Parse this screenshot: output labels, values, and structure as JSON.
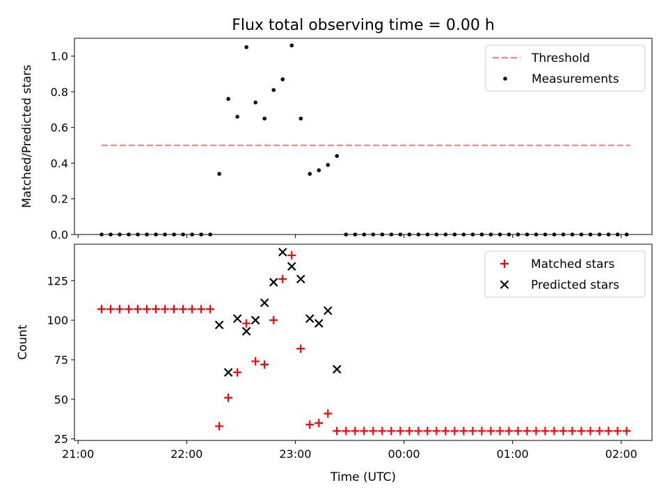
{
  "chart_data": [
    {
      "type": "scatter",
      "title": "Flux total observing time = 0.00 h",
      "xlabel": "",
      "ylabel": "Matched/Predicted stars",
      "xlim": [
        "20:58",
        "02:17"
      ],
      "ylim": [
        0,
        1.1
      ],
      "yticks": [
        0.0,
        0.2,
        0.4,
        0.6,
        0.8,
        1.0
      ],
      "ytick_labels": [
        "0.0",
        "0.2",
        "0.4",
        "0.6",
        "0.8",
        "1.0"
      ],
      "legend_position": "top-right",
      "series": [
        {
          "name": "Threshold",
          "kind": "dashed-line",
          "color": "#ff7f7f",
          "x": [
            "21:13",
            "02:05"
          ],
          "y": [
            0.5,
            0.5
          ]
        },
        {
          "name": "Measurements",
          "kind": "dot",
          "color": "#000000",
          "x": [
            "21:13",
            "21:18",
            "21:23",
            "21:28",
            "21:33",
            "21:38",
            "21:43",
            "21:48",
            "21:53",
            "21:58",
            "22:03",
            "22:08",
            "22:13",
            "22:18",
            "22:23",
            "22:28",
            "22:33",
            "22:38",
            "22:43",
            "22:48",
            "22:53",
            "22:58",
            "23:03",
            "23:08",
            "23:13",
            "23:18",
            "23:23",
            "23:28",
            "23:33",
            "23:38",
            "23:43",
            "23:48",
            "23:53",
            "23:58",
            "00:03",
            "00:08",
            "00:13",
            "00:18",
            "00:23",
            "00:28",
            "00:33",
            "00:38",
            "00:43",
            "00:48",
            "00:53",
            "00:58",
            "01:03",
            "01:08",
            "01:13",
            "01:18",
            "01:23",
            "01:28",
            "01:33",
            "01:38",
            "01:43",
            "01:48",
            "01:53",
            "01:58",
            "02:03"
          ],
          "y": [
            0,
            0,
            0,
            0,
            0,
            0,
            0,
            0,
            0,
            0,
            0,
            0,
            0,
            0.34,
            0.76,
            0.66,
            1.05,
            0.74,
            0.65,
            0.81,
            0.87,
            1.06,
            0.65,
            0.34,
            0.36,
            0.39,
            0.44,
            0,
            0,
            0,
            0,
            0,
            0,
            0,
            0,
            0,
            0,
            0,
            0,
            0,
            0,
            0,
            0,
            0,
            0,
            0,
            0,
            0,
            0,
            0,
            0,
            0,
            0,
            0,
            0,
            0,
            0,
            0,
            0
          ]
        }
      ]
    },
    {
      "type": "scatter",
      "title": "",
      "xlabel": "Time (UTC)",
      "ylabel": "Count",
      "xlim": [
        "20:58",
        "02:17"
      ],
      "ylim": [
        24,
        148
      ],
      "yticks": [
        25,
        50,
        75,
        100,
        125
      ],
      "ytick_labels": [
        "25",
        "50",
        "75",
        "100",
        "125"
      ],
      "xticks": [
        "21:00",
        "22:00",
        "23:00",
        "00:00",
        "01:00",
        "02:00"
      ],
      "xtick_labels": [
        "21:00",
        "22:00",
        "23:00",
        "00:00",
        "01:00",
        "02:00"
      ],
      "legend_position": "top-right",
      "series": [
        {
          "name": "Matched stars",
          "kind": "plus",
          "color": "#ff0000",
          "x": [
            "21:13",
            "21:18",
            "21:23",
            "21:28",
            "21:33",
            "21:38",
            "21:43",
            "21:48",
            "21:53",
            "21:58",
            "22:03",
            "22:08",
            "22:13",
            "22:18",
            "22:23",
            "22:28",
            "22:33",
            "22:38",
            "22:43",
            "22:48",
            "22:53",
            "22:58",
            "23:03",
            "23:08",
            "23:13",
            "23:18",
            "23:23",
            "23:28",
            "23:33",
            "23:38",
            "23:43",
            "23:48",
            "23:53",
            "23:58",
            "00:03",
            "00:08",
            "00:13",
            "00:18",
            "00:23",
            "00:28",
            "00:33",
            "00:38",
            "00:43",
            "00:48",
            "00:53",
            "00:58",
            "01:03",
            "01:08",
            "01:13",
            "01:18",
            "01:23",
            "01:28",
            "01:33",
            "01:38",
            "01:43",
            "01:48",
            "01:53",
            "01:58",
            "02:03"
          ],
          "y": [
            107,
            107,
            107,
            107,
            107,
            107,
            107,
            107,
            107,
            107,
            107,
            107,
            107,
            33,
            51,
            67,
            98,
            74,
            72,
            100,
            126,
            141,
            82,
            34,
            35,
            41,
            30,
            30,
            30,
            30,
            30,
            30,
            30,
            30,
            30,
            30,
            30,
            30,
            30,
            30,
            30,
            30,
            30,
            30,
            30,
            30,
            30,
            30,
            30,
            30,
            30,
            30,
            30,
            30,
            30,
            30,
            30,
            30,
            30
          ]
        },
        {
          "name": "Predicted stars",
          "kind": "x",
          "color": "#000000",
          "x": [
            "22:18",
            "22:23",
            "22:28",
            "22:33",
            "22:38",
            "22:43",
            "22:48",
            "22:53",
            "22:58",
            "23:03",
            "23:08",
            "23:13",
            "23:18",
            "23:23"
          ],
          "y": [
            97,
            67,
            101,
            93,
            100,
            111,
            124,
            143,
            134,
            126,
            101,
            98,
            106,
            69
          ]
        }
      ]
    }
  ]
}
